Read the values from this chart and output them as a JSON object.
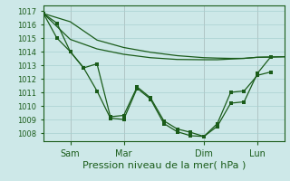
{
  "background_color": "#cde8e8",
  "grid_color": "#a8d0d0",
  "line_color": "#1a5c1a",
  "xlabel": "Pression niveau de la mer( hPa )",
  "xlabel_fontsize": 8,
  "ylim": [
    1007.4,
    1017.4
  ],
  "yticks": [
    1008,
    1009,
    1010,
    1011,
    1012,
    1013,
    1014,
    1015,
    1016,
    1017
  ],
  "xtick_labels": [
    "Sam",
    "Mar",
    "Dim",
    "Lun"
  ],
  "xtick_positions": [
    12,
    36,
    72,
    96
  ],
  "xlim": [
    0,
    108
  ],
  "vline_positions": [
    12,
    36,
    72,
    96
  ],
  "series1_nomarker": {
    "x": [
      0,
      12,
      24,
      36,
      48,
      60,
      72,
      78,
      84,
      90,
      96,
      102,
      108
    ],
    "y": [
      1016.8,
      1016.2,
      1014.85,
      1014.3,
      1013.95,
      1013.7,
      1013.55,
      1013.52,
      1013.5,
      1013.5,
      1013.58,
      1013.6,
      1013.62
    ]
  },
  "series2_nomarker": {
    "x": [
      0,
      12,
      24,
      36,
      48,
      60,
      72,
      78,
      84,
      90,
      96,
      102,
      108
    ],
    "y": [
      1016.8,
      1014.9,
      1014.2,
      1013.8,
      1013.55,
      1013.42,
      1013.4,
      1013.4,
      1013.45,
      1013.5,
      1013.58,
      1013.6,
      1013.62
    ]
  },
  "series3_marker": {
    "x": [
      0,
      6,
      12,
      18,
      24,
      30,
      36,
      42,
      48,
      54,
      60,
      66,
      72,
      78,
      84,
      90,
      96,
      102
    ],
    "y": [
      1016.8,
      1016.1,
      1014.0,
      1012.8,
      1011.1,
      1009.1,
      1009.0,
      1011.3,
      1010.5,
      1008.7,
      1008.1,
      1007.8,
      1007.75,
      1008.7,
      1011.0,
      1011.1,
      1012.25,
      1012.5
    ]
  },
  "series4_marker": {
    "x": [
      0,
      6,
      12,
      18,
      24,
      30,
      36,
      42,
      48,
      54,
      60,
      66,
      72,
      78,
      84,
      90,
      96,
      102
    ],
    "y": [
      1016.8,
      1015.0,
      1014.0,
      1012.8,
      1013.1,
      1009.2,
      1009.3,
      1011.4,
      1010.6,
      1008.9,
      1008.3,
      1008.05,
      1007.75,
      1008.5,
      1010.2,
      1010.3,
      1012.4,
      1013.62
    ]
  }
}
